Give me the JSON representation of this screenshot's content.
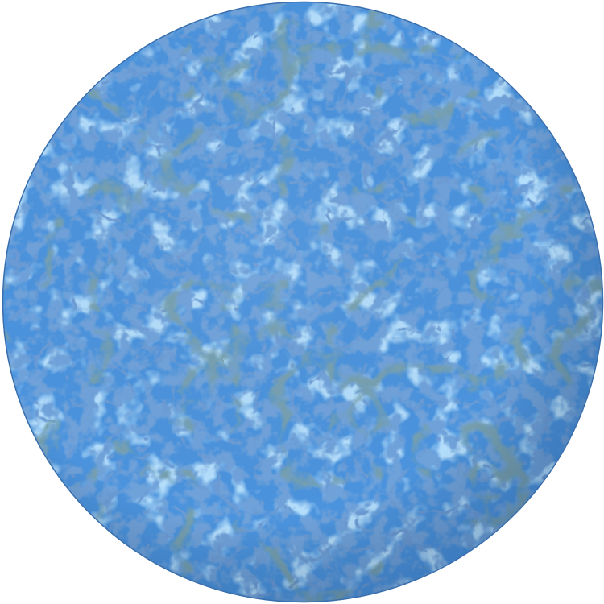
{
  "scene": {
    "subject": "textured-sphere",
    "colors": {
      "background": "#ffffff",
      "base": "#4b93dd",
      "highlight": "#6cb0f2",
      "vein_dark": "#2f5a6e",
      "vein_blue": "#2656a8",
      "rim": "#3a6fae"
    }
  }
}
